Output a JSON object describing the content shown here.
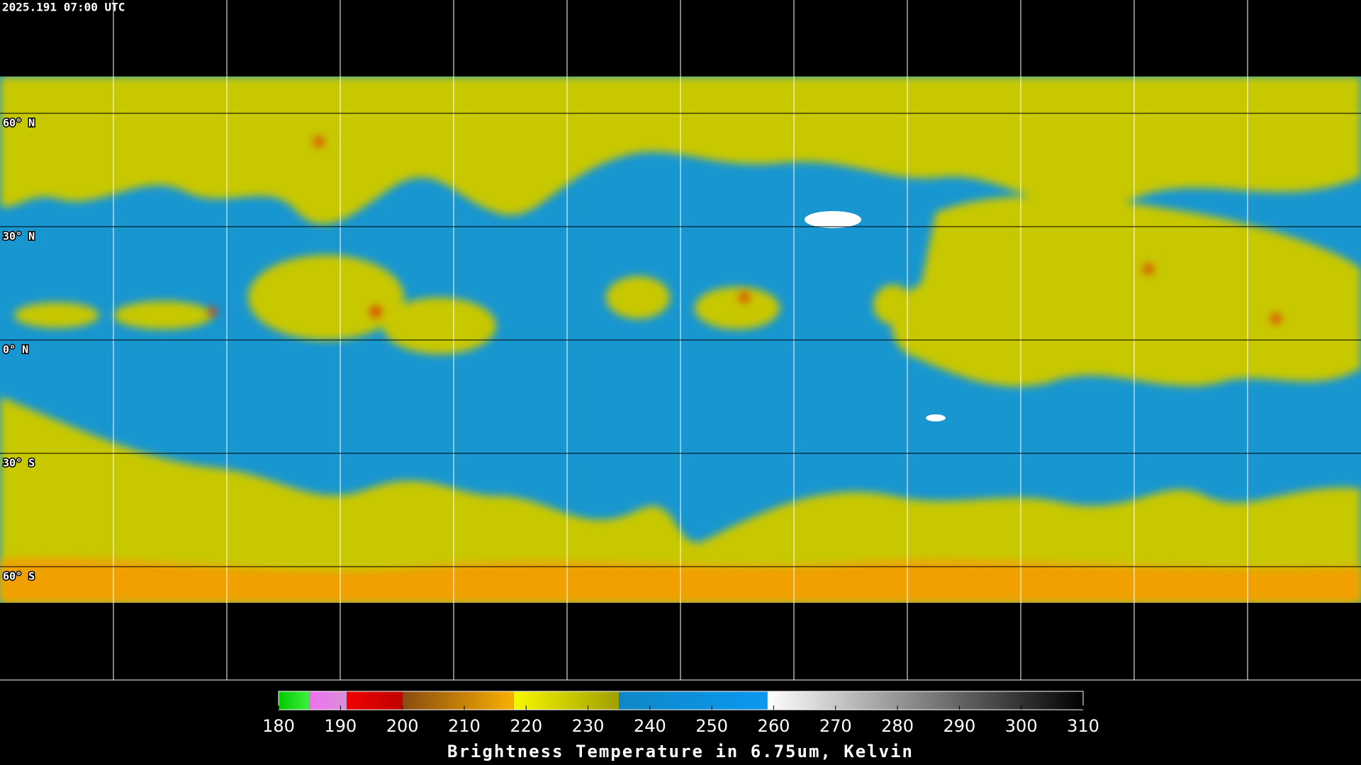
{
  "header": {
    "timestamp": "2025.191 07:00 UTC"
  },
  "map": {
    "latitudes": [
      {
        "value": 60,
        "label": "60° N"
      },
      {
        "value": 30,
        "label": "30° N"
      },
      {
        "value": 0,
        "label": "0° N"
      },
      {
        "value": -30,
        "label": "30° S"
      },
      {
        "value": -60,
        "label": "60° S"
      }
    ]
  },
  "colorbar": {
    "label": "Brightness Temperature in 6.75um, Kelvin",
    "range": [
      180,
      310
    ],
    "ticks": [
      180,
      190,
      200,
      210,
      220,
      230,
      240,
      250,
      260,
      270,
      280,
      290,
      300,
      310
    ],
    "segments": [
      {
        "from": 180,
        "to": 185,
        "colors": [
          "#00c800",
          "#40f040"
        ]
      },
      {
        "from": 185,
        "to": 191,
        "colors": [
          "#f070f0",
          "#d890d8"
        ]
      },
      {
        "from": 191,
        "to": 200,
        "colors": [
          "#f00000",
          "#c00000"
        ]
      },
      {
        "from": 200,
        "to": 218,
        "colors": [
          "#8a4a10",
          "#f8b000"
        ]
      },
      {
        "from": 218,
        "to": 235,
        "colors": [
          "#f8f800",
          "#a0a000"
        ]
      },
      {
        "from": 235,
        "to": 259,
        "colors": [
          "#0f88c8",
          "#0a98f0"
        ]
      },
      {
        "from": 259,
        "to": 310,
        "colors": [
          "#ffffff",
          "#000000"
        ]
      }
    ]
  }
}
